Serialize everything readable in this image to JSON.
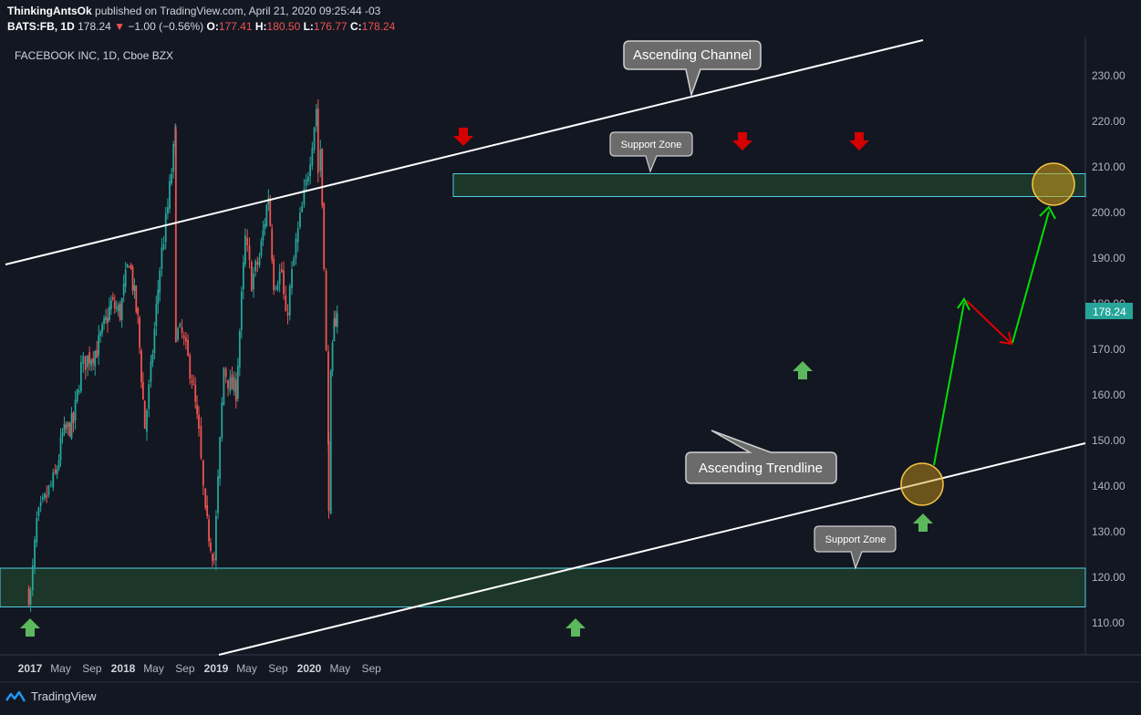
{
  "header": {
    "author": "ThinkingAntsOk",
    "published_text": "published on TradingView.com, April 21, 2020 09:25:44 -03"
  },
  "ohlc": {
    "symbol": "BATS:FB, 1D",
    "last": "178.24",
    "arrow": "▼",
    "change": "−1.00 (−0.56%)",
    "o_label": "O:",
    "o": "177.41",
    "h_label": "H:",
    "h": "180.50",
    "l_label": "L:",
    "l": "176.77",
    "c_label": "C:",
    "c": "178.24"
  },
  "footer": {
    "brand": "TradingView",
    "logo_icon": "tradingview-logo-icon"
  },
  "colors": {
    "background": "#131722",
    "up": "#26a69a",
    "down": "#ef5350",
    "zone_fill": "#1e3a2a",
    "zone_border": "#4dd0e1",
    "arrow_up": "#5cb85c",
    "arrow_down": "#d50000",
    "price_tag": "#26a69a",
    "projection_up": "#00e000",
    "projection_down": "#e00000"
  },
  "chart_data": {
    "type": "candlestick",
    "title": "FACEBOOK INC, 1D, Cboe BZX",
    "y_axis_ticks": [
      "230.00",
      "220.00",
      "210.00",
      "200.00",
      "190.00",
      "180.00",
      "170.00",
      "160.00",
      "150.00",
      "140.00",
      "130.00",
      "120.00",
      "110.00"
    ],
    "ylim": [
      102,
      236
    ],
    "x_axis_ticks": [
      "2017",
      "May",
      "Sep",
      "2018",
      "May",
      "Sep",
      "2019",
      "May",
      "Sep",
      "2020",
      "May",
      "Sep"
    ],
    "x_axis_bold": [
      "2017",
      "2018",
      "2019",
      "2020"
    ],
    "last_price_label": "178.24",
    "price_path": [
      [
        "2016-12-20",
        117
      ],
      [
        "2017-01-03",
        116
      ],
      [
        "2017-01-27",
        132
      ],
      [
        "2017-03-15",
        139
      ],
      [
        "2017-04-10",
        142
      ],
      [
        "2017-05-08",
        151
      ],
      [
        "2017-06-20",
        154
      ],
      [
        "2017-07-20",
        166
      ],
      [
        "2017-08-15",
        168
      ],
      [
        "2017-09-20",
        170
      ],
      [
        "2017-10-25",
        176
      ],
      [
        "2017-11-15",
        180
      ],
      [
        "2017-12-20",
        178
      ],
      [
        "2018-01-25",
        190
      ],
      [
        "2018-02-28",
        176
      ],
      [
        "2018-03-27",
        153
      ],
      [
        "2018-04-20",
        165
      ],
      [
        "2018-05-25",
        188
      ],
      [
        "2018-06-25",
        201
      ],
      [
        "2018-07-25",
        217
      ],
      [
        "2018-07-27",
        174
      ],
      [
        "2018-08-20",
        173
      ],
      [
        "2018-09-28",
        164
      ],
      [
        "2018-10-25",
        151
      ],
      [
        "2018-11-20",
        133
      ],
      [
        "2018-12-24",
        124
      ],
      [
        "2019-01-31",
        166
      ],
      [
        "2019-02-25",
        162
      ],
      [
        "2019-03-20",
        161
      ],
      [
        "2019-04-25",
        194
      ],
      [
        "2019-05-20",
        185
      ],
      [
        "2019-06-20",
        190
      ],
      [
        "2019-07-25",
        204
      ],
      [
        "2019-08-15",
        185
      ],
      [
        "2019-09-15",
        187
      ],
      [
        "2019-10-01",
        176
      ],
      [
        "2019-11-10",
        193
      ],
      [
        "2019-12-20",
        206
      ],
      [
        "2020-01-29",
        223
      ],
      [
        "2020-02-05",
        209
      ],
      [
        "2020-02-14",
        214
      ],
      [
        "2020-02-28",
        190
      ],
      [
        "2020-03-16",
        148
      ],
      [
        "2020-03-18",
        137
      ],
      [
        "2020-03-26",
        163
      ],
      [
        "2020-04-08",
        175
      ],
      [
        "2020-04-20",
        179
      ]
    ],
    "annotations": {
      "ascending_channel_label": "Ascending Channel",
      "ascending_trendline_label": "Ascending Trendline",
      "support_zone_upper_label": "Support Zone",
      "support_zone_lower_label": "Support Zone",
      "upper_zone": [
        203.5,
        208.5
      ],
      "lower_zone": [
        113.5,
        122
      ]
    }
  }
}
